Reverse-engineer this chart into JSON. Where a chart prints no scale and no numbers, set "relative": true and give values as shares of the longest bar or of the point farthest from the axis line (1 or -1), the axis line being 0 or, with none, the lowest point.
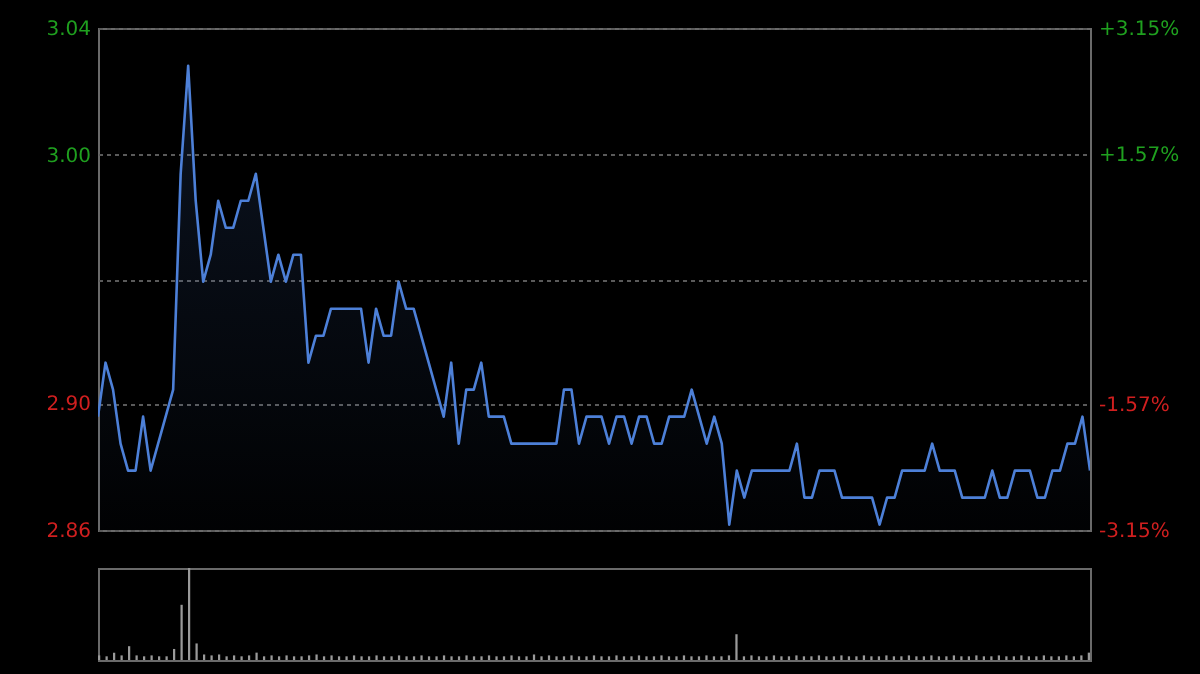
{
  "chart_data": [
    {
      "type": "area",
      "color": "#4d80d8",
      "grid": "y",
      "tick_labels": "y",
      "ylim": [
        2.858,
        3.044
      ],
      "yticks": [
        {
          "value": 2.858,
          "label": "2.86"
        },
        {
          "value": 2.905,
          "label": "2.90"
        },
        {
          "value": 2.951,
          "label": null
        },
        {
          "value": 2.997,
          "label": "3.00"
        },
        {
          "value": 3.044,
          "label": "3.04"
        }
      ],
      "y2lim": [
        -3.15,
        3.15
      ],
      "y2ticks": [
        {
          "value": -3.15,
          "label": "-3.15%"
        },
        {
          "value": -1.57,
          "label": "-1.57%"
        },
        {
          "value": 1.57,
          "label": "+1.57%"
        },
        {
          "value": 3.15,
          "label": "+3.15%"
        }
      ],
      "categories": [
        null,
        null,
        null,
        null,
        null,
        null,
        null,
        null,
        null,
        null,
        null,
        null,
        null,
        null,
        null,
        null,
        null,
        null,
        null,
        null,
        null,
        null,
        null,
        null,
        null,
        null,
        null,
        null,
        null,
        null,
        null,
        null,
        null,
        null,
        null,
        null,
        null,
        null,
        null,
        null,
        null,
        null,
        null,
        null,
        null,
        null,
        null,
        null,
        null,
        null,
        null,
        null,
        null,
        null,
        null,
        null,
        null,
        null,
        null,
        null,
        null,
        null,
        null,
        null,
        null,
        null,
        null,
        null,
        null,
        null,
        null,
        null,
        null,
        null,
        null,
        null,
        null,
        null,
        null,
        null,
        null,
        null,
        null,
        null,
        null,
        null,
        null,
        null,
        null,
        null,
        null,
        null,
        null,
        null,
        null,
        null,
        null,
        null,
        null,
        null,
        null,
        null,
        null,
        null,
        null,
        null,
        null,
        null,
        null,
        null,
        null,
        null,
        null,
        null,
        null,
        null,
        null,
        null,
        null,
        null,
        null,
        null,
        null,
        null,
        null,
        null,
        null,
        null,
        null,
        null,
        null,
        null,
        null
      ],
      "values": [
        2.9,
        2.92,
        2.91,
        2.89,
        2.88,
        2.88,
        2.9,
        2.88,
        2.89,
        2.9,
        2.91,
        2.99,
        3.03,
        2.98,
        2.95,
        2.96,
        2.98,
        2.97,
        2.97,
        2.98,
        2.98,
        2.99,
        2.97,
        2.95,
        2.96,
        2.95,
        2.96,
        2.96,
        2.92,
        2.93,
        2.93,
        2.94,
        2.94,
        2.94,
        2.94,
        2.94,
        2.92,
        2.94,
        2.93,
        2.93,
        2.95,
        2.94,
        2.94,
        2.93,
        2.92,
        2.91,
        2.9,
        2.92,
        2.89,
        2.91,
        2.91,
        2.92,
        2.9,
        2.9,
        2.9,
        2.89,
        2.89,
        2.89,
        2.89,
        2.89,
        2.89,
        2.89,
        2.91,
        2.91,
        2.89,
        2.9,
        2.9,
        2.9,
        2.89,
        2.9,
        2.9,
        2.89,
        2.9,
        2.9,
        2.89,
        2.89,
        2.9,
        2.9,
        2.9,
        2.91,
        2.9,
        2.89,
        2.9,
        2.89,
        2.86,
        2.88,
        2.87,
        2.88,
        2.88,
        2.88,
        2.88,
        2.88,
        2.88,
        2.89,
        2.87,
        2.87,
        2.88,
        2.88,
        2.88,
        2.87,
        2.87,
        2.87,
        2.87,
        2.87,
        2.86,
        2.87,
        2.87,
        2.88,
        2.88,
        2.88,
        2.88,
        2.89,
        2.88,
        2.88,
        2.88,
        2.87,
        2.87,
        2.87,
        2.87,
        2.88,
        2.87,
        2.87,
        2.88,
        2.88,
        2.88,
        2.87,
        2.87,
        2.88,
        2.88,
        2.89,
        2.89,
        2.9,
        2.88
      ]
    },
    {
      "type": "bar",
      "relative": true,
      "color": "#9a9a9a",
      "tick_labels": false,
      "categories": [
        null,
        null,
        null,
        null,
        null,
        null,
        null,
        null,
        null,
        null,
        null,
        null,
        null,
        null,
        null,
        null,
        null,
        null,
        null,
        null,
        null,
        null,
        null,
        null,
        null,
        null,
        null,
        null,
        null,
        null,
        null,
        null,
        null,
        null,
        null,
        null,
        null,
        null,
        null,
        null,
        null,
        null,
        null,
        null,
        null,
        null,
        null,
        null,
        null,
        null,
        null,
        null,
        null,
        null,
        null,
        null,
        null,
        null,
        null,
        null,
        null,
        null,
        null,
        null,
        null,
        null,
        null,
        null,
        null,
        null,
        null,
        null,
        null,
        null,
        null,
        null,
        null,
        null,
        null,
        null,
        null,
        null,
        null,
        null,
        null,
        null,
        null,
        null,
        null,
        null,
        null,
        null,
        null,
        null,
        null,
        null,
        null,
        null,
        null,
        null,
        null,
        null,
        null,
        null,
        null,
        null,
        null,
        null,
        null,
        null,
        null,
        null,
        null,
        null,
        null,
        null,
        null,
        null,
        null,
        null,
        null,
        null,
        null,
        null,
        null,
        null,
        null,
        null,
        null,
        null,
        null,
        null,
        null
      ],
      "values": [
        0.05,
        0.04,
        0.08,
        0.05,
        0.15,
        0.05,
        0.04,
        0.05,
        0.04,
        0.04,
        0.12,
        0.6,
        1,
        0.18,
        0.06,
        0.05,
        0.06,
        0.04,
        0.05,
        0.04,
        0.05,
        0.08,
        0.04,
        0.05,
        0.04,
        0.05,
        0.04,
        0.04,
        0.05,
        0.06,
        0.04,
        0.05,
        0.04,
        0.04,
        0.05,
        0.04,
        0.04,
        0.05,
        0.04,
        0.04,
        0.05,
        0.04,
        0.04,
        0.05,
        0.04,
        0.04,
        0.05,
        0.04,
        0.04,
        0.05,
        0.04,
        0.04,
        0.05,
        0.04,
        0.04,
        0.05,
        0.04,
        0.04,
        0.06,
        0.04,
        0.05,
        0.04,
        0.04,
        0.05,
        0.04,
        0.04,
        0.05,
        0.04,
        0.04,
        0.05,
        0.04,
        0.04,
        0.05,
        0.04,
        0.04,
        0.05,
        0.04,
        0.04,
        0.05,
        0.04,
        0.04,
        0.05,
        0.04,
        0.04,
        0.05,
        0.28,
        0.04,
        0.05,
        0.04,
        0.04,
        0.05,
        0.04,
        0.04,
        0.05,
        0.04,
        0.04,
        0.05,
        0.04,
        0.04,
        0.05,
        0.04,
        0.04,
        0.05,
        0.04,
        0.04,
        0.05,
        0.04,
        0.04,
        0.05,
        0.04,
        0.04,
        0.05,
        0.04,
        0.04,
        0.05,
        0.04,
        0.04,
        0.05,
        0.04,
        0.04,
        0.05,
        0.04,
        0.04,
        0.05,
        0.04,
        0.04,
        0.05,
        0.04,
        0.04,
        0.05,
        0.04,
        0.05,
        0.08
      ]
    }
  ]
}
